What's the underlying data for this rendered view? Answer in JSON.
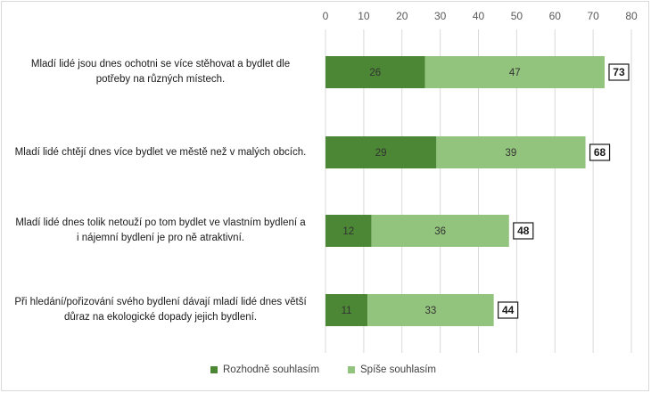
{
  "chart_data": {
    "type": "bar",
    "stacked": true,
    "orientation": "horizontal",
    "categories": [
      "Mladí lidé jsou dnes ochotni se více stěhovat a bydlet dle potřeby na různých místech.",
      "Mladí lidé chtějí dnes více bydlet ve městě než v malých obcích.",
      "Mladí lidé dnes tolik netouží po tom bydlet ve vlastním bydlení a i nájemní bydlení je pro ně atraktivní.",
      "Při hledání/pořizování svého bydlení dávají mladí lidé dnes větší důraz na ekologické dopady jejich bydlení."
    ],
    "series": [
      {
        "name": "Rozhodně souhlasím",
        "values": [
          26,
          29,
          12,
          11
        ],
        "color": "#4b8734"
      },
      {
        "name": "Spíše souhlasím",
        "values": [
          47,
          39,
          36,
          33
        ],
        "color": "#93c47d"
      }
    ],
    "totals": [
      73,
      68,
      48,
      44
    ],
    "xlim": [
      0,
      80
    ],
    "xticks": [
      "0",
      "10",
      "20",
      "30",
      "40",
      "50",
      "60",
      "70",
      "80"
    ],
    "grid": true,
    "legend_position": "bottom"
  }
}
